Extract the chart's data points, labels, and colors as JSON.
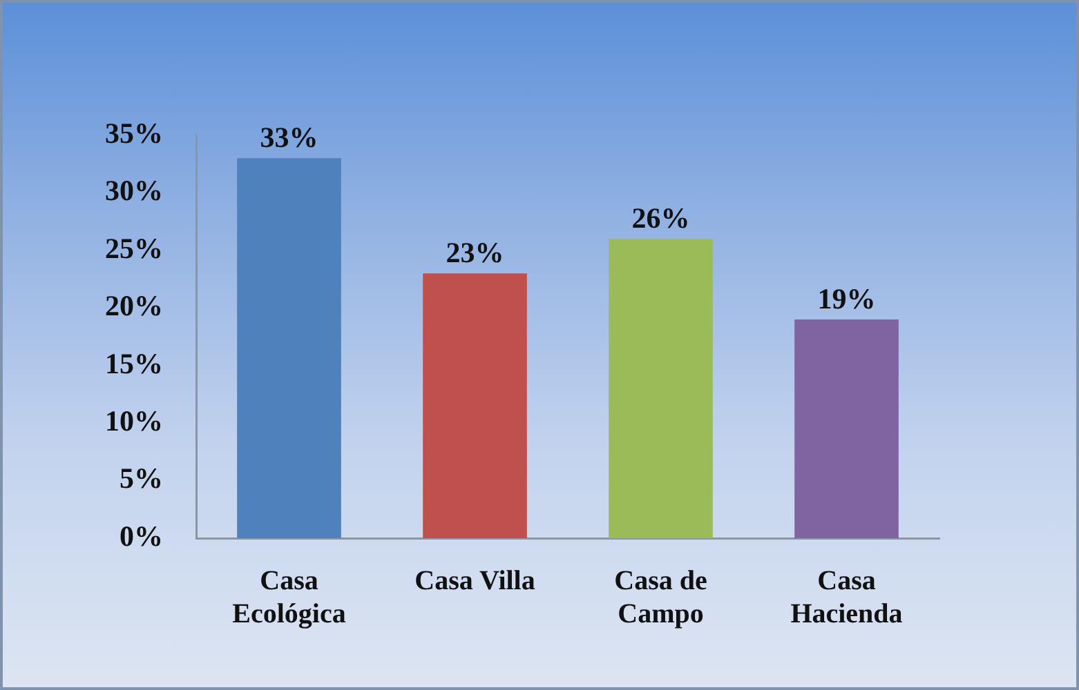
{
  "chart_data": {
    "type": "bar",
    "categories": [
      "Casa Ecológica",
      "Casa Villa",
      "Casa de Campo",
      "Casa Hacienda"
    ],
    "values": [
      33,
      23,
      26,
      19
    ],
    "colors": [
      "#4f81bd",
      "#c0504d",
      "#9bbb59",
      "#8064a2"
    ],
    "value_labels": [
      "33%",
      "23%",
      "26%",
      "19%"
    ],
    "ylim": [
      0,
      35
    ],
    "yticks": [
      {
        "value": 0,
        "label": "0%"
      },
      {
        "value": 5,
        "label": "5%"
      },
      {
        "value": 10,
        "label": "10%"
      },
      {
        "value": 15,
        "label": "15%"
      },
      {
        "value": 20,
        "label": "20%"
      },
      {
        "value": 25,
        "label": "25%"
      },
      {
        "value": 30,
        "label": "30%"
      },
      {
        "value": 35,
        "label": "35%"
      }
    ],
    "grid": false,
    "legend": false
  }
}
